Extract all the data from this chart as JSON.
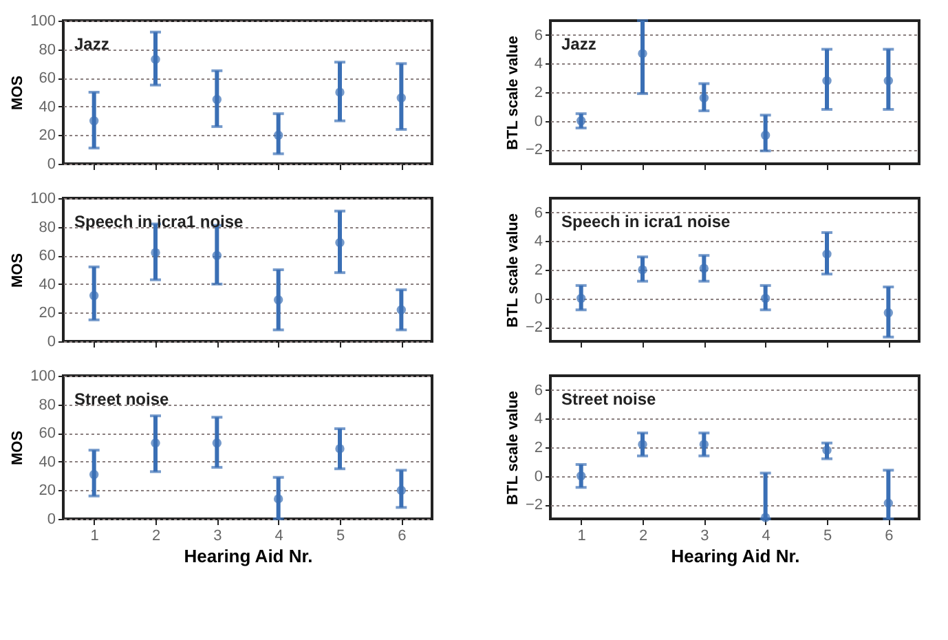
{
  "chart_data": [
    {
      "type": "scatter",
      "title": "Jazz",
      "ylabel": "MOS",
      "categories": [
        "1",
        "2",
        "3",
        "4",
        "5",
        "6"
      ],
      "tick_labels": "y",
      "ylim": [
        0,
        100
      ],
      "yticks": [
        0,
        20,
        40,
        60,
        80,
        100
      ],
      "grid": "y",
      "marker": "circle",
      "series": [
        {
          "color": "#3a6fb5",
          "values": [
            30,
            73,
            45,
            20,
            50,
            46
          ],
          "errors": [
            [
              11,
              50
            ],
            [
              55,
              92
            ],
            [
              26,
              65
            ],
            [
              7,
              35
            ],
            [
              30,
              71
            ],
            [
              24,
              70
            ]
          ]
        }
      ]
    },
    {
      "type": "scatter",
      "title": "Jazz",
      "ylabel": "BTL scale value",
      "categories": [
        "1",
        "2",
        "3",
        "4",
        "5",
        "6"
      ],
      "tick_labels": "y",
      "ylim": [
        -3,
        7
      ],
      "yticks": [
        -2,
        0,
        2,
        4,
        6
      ],
      "grid": "y",
      "marker": "circle",
      "series": [
        {
          "color": "#3a6fb5",
          "values": [
            0,
            4.7,
            1.6,
            -1,
            2.8,
            2.8
          ],
          "errors": [
            [
              -0.5,
              0.5
            ],
            [
              1.9,
              7
            ],
            [
              0.7,
              2.6
            ],
            [
              -2.1,
              0.4
            ],
            [
              0.8,
              5
            ],
            [
              0.8,
              5
            ]
          ]
        }
      ]
    },
    {
      "type": "scatter",
      "title": "Speech in icra1 noise",
      "ylabel": "MOS",
      "categories": [
        "1",
        "2",
        "3",
        "4",
        "5",
        "6"
      ],
      "tick_labels": "y",
      "ylim": [
        0,
        100
      ],
      "yticks": [
        0,
        20,
        40,
        60,
        80,
        100
      ],
      "grid": "y",
      "marker": "circle",
      "series": [
        {
          "color": "#3a6fb5",
          "values": [
            32,
            62,
            60,
            29,
            69,
            22
          ],
          "errors": [
            [
              15,
              52
            ],
            [
              43,
              82
            ],
            [
              40,
              81
            ],
            [
              8,
              50
            ],
            [
              48,
              91
            ],
            [
              8,
              36
            ]
          ]
        }
      ]
    },
    {
      "type": "scatter",
      "title": "Speech in icra1 noise",
      "ylabel": "BTL scale value",
      "categories": [
        "1",
        "2",
        "3",
        "4",
        "5",
        "6"
      ],
      "tick_labels": "y",
      "ylim": [
        -3,
        7
      ],
      "yticks": [
        -2,
        0,
        2,
        4,
        6
      ],
      "grid": "y",
      "marker": "circle",
      "series": [
        {
          "color": "#3a6fb5",
          "values": [
            0,
            2,
            2.1,
            0,
            3.1,
            -1
          ],
          "errors": [
            [
              -0.8,
              0.9
            ],
            [
              1.2,
              2.9
            ],
            [
              1.2,
              3
            ],
            [
              -0.8,
              0.9
            ],
            [
              1.7,
              4.6
            ],
            [
              -2.7,
              0.8
            ]
          ]
        }
      ]
    },
    {
      "type": "scatter",
      "title": "Street noise",
      "xlabel": "Hearing Aid Nr.",
      "ylabel": "MOS",
      "categories": [
        "1",
        "2",
        "3",
        "4",
        "5",
        "6"
      ],
      "ylim": [
        0,
        100
      ],
      "yticks": [
        0,
        20,
        40,
        60,
        80,
        100
      ],
      "grid": "y",
      "marker": "circle",
      "series": [
        {
          "color": "#3a6fb5",
          "values": [
            31,
            53,
            53,
            14,
            49,
            20
          ],
          "errors": [
            [
              16,
              48
            ],
            [
              33,
              72
            ],
            [
              36,
              71
            ],
            [
              0,
              29
            ],
            [
              35,
              63
            ],
            [
              8,
              34
            ]
          ]
        }
      ]
    },
    {
      "type": "scatter",
      "title": "Street noise",
      "xlabel": "Hearing Aid Nr.",
      "ylabel": "BTL scale value",
      "categories": [
        "1",
        "2",
        "3",
        "4",
        "5",
        "6"
      ],
      "ylim": [
        -3,
        7
      ],
      "yticks": [
        -2,
        0,
        2,
        4,
        6
      ],
      "grid": "y",
      "marker": "circle",
      "series": [
        {
          "color": "#3a6fb5",
          "values": [
            0,
            2.2,
            2.2,
            -2.9,
            1.8,
            -1.9
          ],
          "errors": [
            [
              -0.8,
              0.8
            ],
            [
              1.4,
              3
            ],
            [
              1.4,
              3
            ],
            [
              -3,
              0.2
            ],
            [
              1.2,
              2.3
            ],
            [
              -3,
              0.4
            ]
          ]
        }
      ]
    }
  ]
}
